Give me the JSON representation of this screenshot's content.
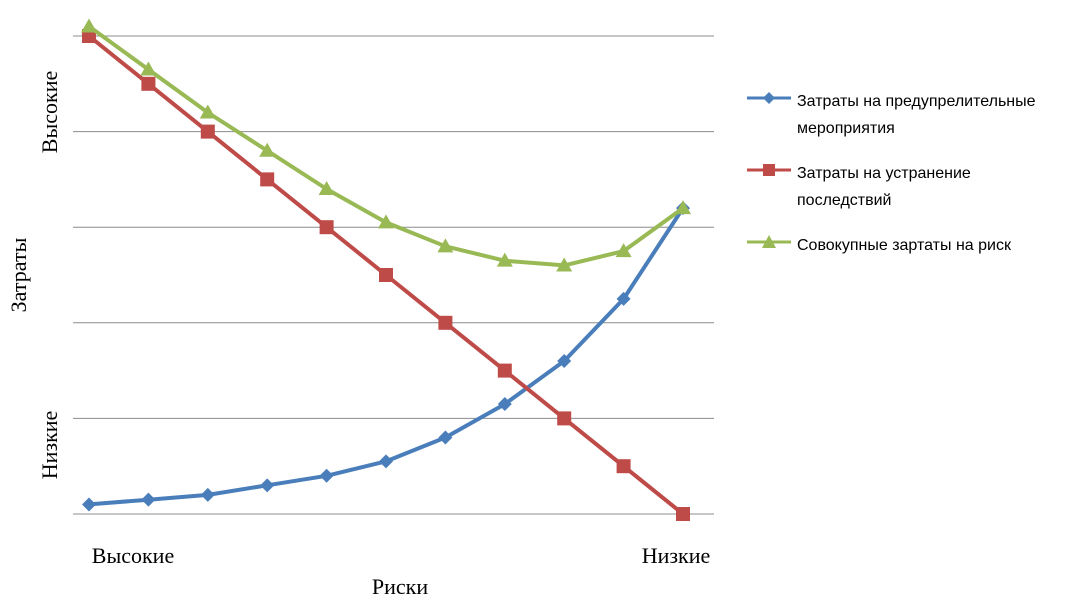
{
  "chart_data": {
    "type": "line",
    "xlabel": "Риски",
    "ylabel": "Затраты",
    "x_tick_labels": {
      "left": "Высокие",
      "right": "Низкие"
    },
    "y_tick_labels": {
      "top": "Высокие",
      "bottom": "Низкие"
    },
    "grid": true,
    "legend_position": "right",
    "x": [
      1,
      2,
      3,
      4,
      5,
      6,
      7,
      8,
      9,
      10,
      11
    ],
    "ylim": [
      0,
      100
    ],
    "series": [
      {
        "name": "Затраты на предупрелительные мероприятия",
        "color": "#4a7ebb",
        "marker": "diamond",
        "values": [
          2,
          3,
          4,
          6,
          8,
          11,
          16,
          23,
          32,
          45,
          64
        ]
      },
      {
        "name": "Затраты на устранение последствий",
        "color": "#be4b48",
        "marker": "square",
        "values": [
          100,
          90,
          80,
          70,
          60,
          50,
          40,
          30,
          20,
          10,
          0
        ]
      },
      {
        "name": "Совокупные зартаты на риск",
        "color": "#98b954",
        "marker": "triangle",
        "values": [
          102,
          93,
          84,
          76,
          68,
          61,
          56,
          53,
          52,
          55,
          64
        ]
      }
    ]
  }
}
